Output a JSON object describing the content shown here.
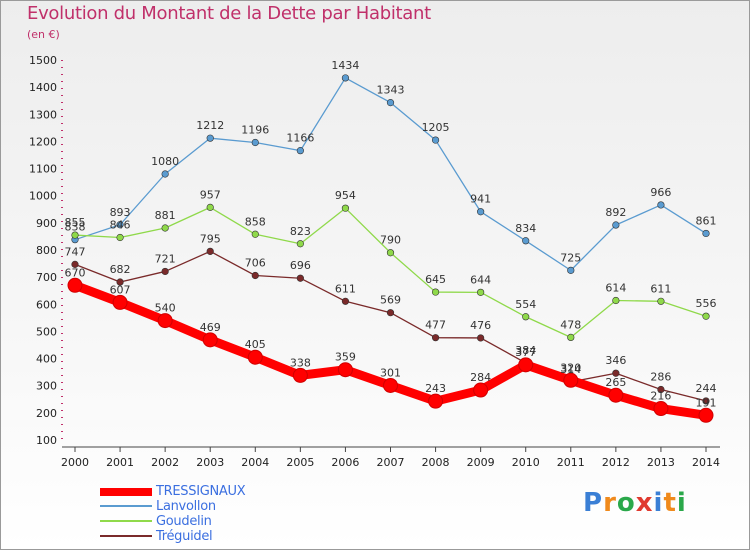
{
  "title": "Evolution du Montant de la Dette par Habitant",
  "unit": "(en €)",
  "logo": "Proxiti",
  "colors": {
    "title": "#c0306a",
    "legend_text": "#3b6fe0"
  },
  "chart_data": {
    "type": "line",
    "title": "Evolution du Montant de la Dette par Habitant",
    "ylabel": "(en €)",
    "xlabel": "",
    "ylim": [
      100,
      1500
    ],
    "yticks": [
      100,
      200,
      300,
      400,
      500,
      600,
      700,
      800,
      900,
      1000,
      1100,
      1200,
      1300,
      1400,
      1500
    ],
    "grid": false,
    "legend_position": "bottom-left",
    "categories": [
      "2000",
      "2001",
      "2002",
      "2003",
      "2004",
      "2005",
      "2006",
      "2007",
      "2008",
      "2009",
      "2010",
      "2011",
      "2012",
      "2013",
      "2014"
    ],
    "series": [
      {
        "name": "TRESSIGNAUX",
        "color": "#ff0000",
        "values": [
          670,
          607,
          540,
          469,
          405,
          338,
          359,
          301,
          243,
          284,
          377,
          320,
          265,
          216,
          191
        ],
        "labels": [
          "670",
          "607",
          "540",
          "469",
          "405",
          "338",
          "359",
          "301",
          "243",
          "284",
          "377",
          "320",
          "265",
          "216",
          "191"
        ]
      },
      {
        "name": "Lanvollon",
        "color": "#5a9bd0",
        "values": [
          838,
          893,
          1080,
          1212,
          1196,
          1166,
          1434,
          1343,
          1205,
          941,
          834,
          725,
          892,
          966,
          861
        ],
        "labels": [
          "838",
          "893",
          "1080",
          "1212",
          "1196",
          "1166",
          "1434",
          "1343",
          "1205",
          "941",
          "834",
          "725",
          "892",
          "966",
          "861"
        ]
      },
      {
        "name": "Goudelin",
        "color": "#8fd94a",
        "values": [
          855,
          846,
          881,
          957,
          858,
          823,
          954,
          790,
          645,
          644,
          554,
          478,
          614,
          611,
          556
        ],
        "labels": [
          "855",
          "846",
          "881",
          "957",
          "858",
          "823",
          "954",
          "790",
          "645",
          "644",
          "554",
          "478",
          "614",
          "611",
          "556"
        ]
      },
      {
        "name": "Tréguidel",
        "color": "#7a2a2a",
        "values": [
          747,
          682,
          721,
          795,
          706,
          696,
          611,
          569,
          477,
          476,
          384,
          314,
          346,
          286,
          244
        ],
        "labels": [
          "747",
          "682",
          "721",
          "795",
          "706",
          "696",
          "611",
          "569",
          "477",
          "476",
          "384",
          "314",
          "346",
          "286",
          "244"
        ]
      }
    ]
  }
}
